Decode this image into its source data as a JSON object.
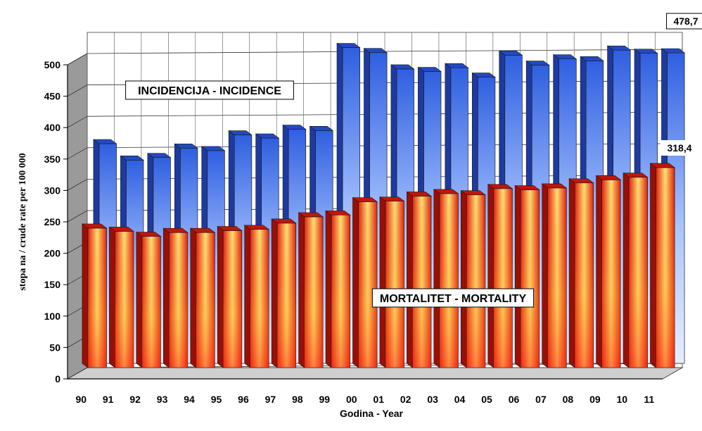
{
  "chart_data": {
    "type": "bar",
    "categories": [
      "90",
      "91",
      "92",
      "93",
      "94",
      "95",
      "96",
      "97",
      "98",
      "99",
      "00",
      "01",
      "02",
      "03",
      "04",
      "05",
      "06",
      "07",
      "08",
      "09",
      "10",
      "11"
    ],
    "series": [
      {
        "name": "INCIDENCIJA - INCIDENCE",
        "color": "#3b6fe8",
        "values": [
          334,
          308,
          312,
          327,
          323,
          348,
          343,
          357,
          355,
          487,
          479,
          453,
          449,
          455,
          440,
          475,
          459,
          469,
          466,
          483,
          478,
          478.7
        ]
      },
      {
        "name": "MORTALITET - MORTALITY",
        "color": "#e8281a",
        "values": [
          222,
          217,
          209,
          215,
          215,
          218,
          220,
          230,
          240,
          243,
          264,
          265,
          273,
          277,
          275,
          285,
          283,
          286,
          294,
          299,
          303,
          318.4
        ]
      }
    ],
    "data_labels": [
      {
        "series": "INCIDENCIJA - INCIDENCE",
        "category": "11",
        "text": "478,7"
      },
      {
        "series": "MORTALITET - MORTALITY",
        "category": "11",
        "text": "318,4"
      }
    ],
    "yticks": [
      "0",
      "50",
      "100",
      "150",
      "200",
      "250",
      "300",
      "350",
      "400",
      "450",
      "500"
    ],
    "ylim": [
      0,
      500
    ],
    "ylabel": "stopa na / crude rate per 100 000",
    "xlabel": "Godina - Year",
    "grid": true,
    "legend": "inline-labels"
  }
}
